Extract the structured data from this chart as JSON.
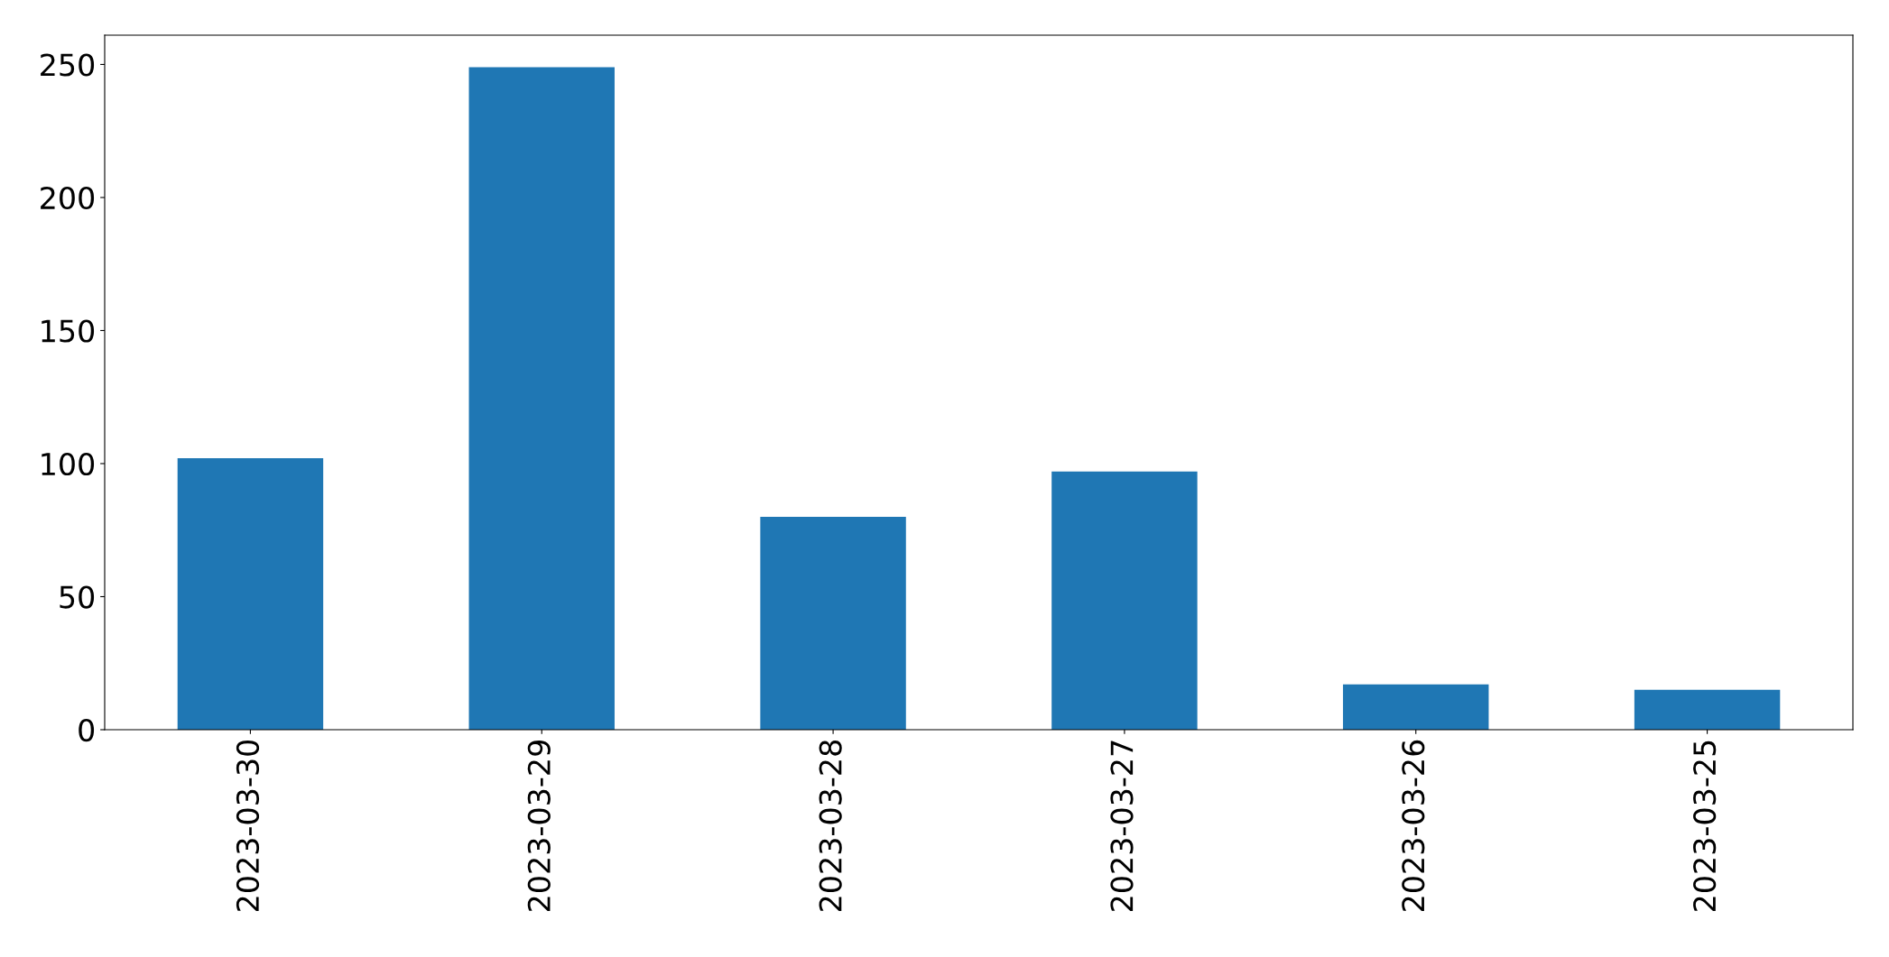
{
  "chart_data": {
    "type": "bar",
    "categories": [
      "2023-03-30",
      "2023-03-29",
      "2023-03-28",
      "2023-03-27",
      "2023-03-26",
      "2023-03-25"
    ],
    "values": [
      102,
      249,
      80,
      97,
      17,
      15
    ],
    "color": "#1f77b4",
    "ylim": [
      0,
      261
    ],
    "yticks": [
      0,
      50,
      100,
      150,
      200,
      250
    ],
    "grid": false
  }
}
